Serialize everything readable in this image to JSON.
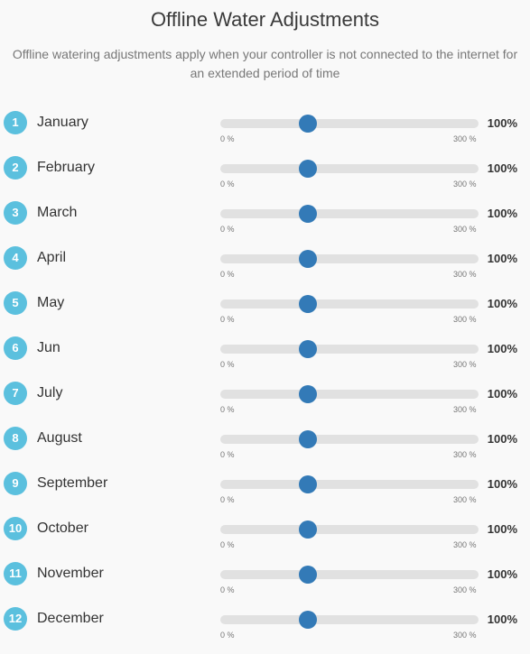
{
  "header": {
    "title": "Offline Water Adjustments",
    "subtitle": "Offline watering adjustments apply when your controller is not connected to the internet for an extended period of time"
  },
  "slider_scale": {
    "min_label": "0 %",
    "max_label": "300 %",
    "min": 0,
    "max": 300
  },
  "colors": {
    "badge": "#5bc0de",
    "thumb": "#337ab7",
    "track": "#e1e1e1"
  },
  "months": [
    {
      "number": "1",
      "name": "January",
      "value": 100,
      "value_label": "100%"
    },
    {
      "number": "2",
      "name": "February",
      "value": 100,
      "value_label": "100%"
    },
    {
      "number": "3",
      "name": "March",
      "value": 100,
      "value_label": "100%"
    },
    {
      "number": "4",
      "name": "April",
      "value": 100,
      "value_label": "100%"
    },
    {
      "number": "5",
      "name": "May",
      "value": 100,
      "value_label": "100%"
    },
    {
      "number": "6",
      "name": "Jun",
      "value": 100,
      "value_label": "100%"
    },
    {
      "number": "7",
      "name": "July",
      "value": 100,
      "value_label": "100%"
    },
    {
      "number": "8",
      "name": "August",
      "value": 100,
      "value_label": "100%"
    },
    {
      "number": "9",
      "name": "September",
      "value": 100,
      "value_label": "100%"
    },
    {
      "number": "10",
      "name": "October",
      "value": 100,
      "value_label": "100%"
    },
    {
      "number": "11",
      "name": "November",
      "value": 100,
      "value_label": "100%"
    },
    {
      "number": "12",
      "name": "December",
      "value": 100,
      "value_label": "100%"
    }
  ]
}
